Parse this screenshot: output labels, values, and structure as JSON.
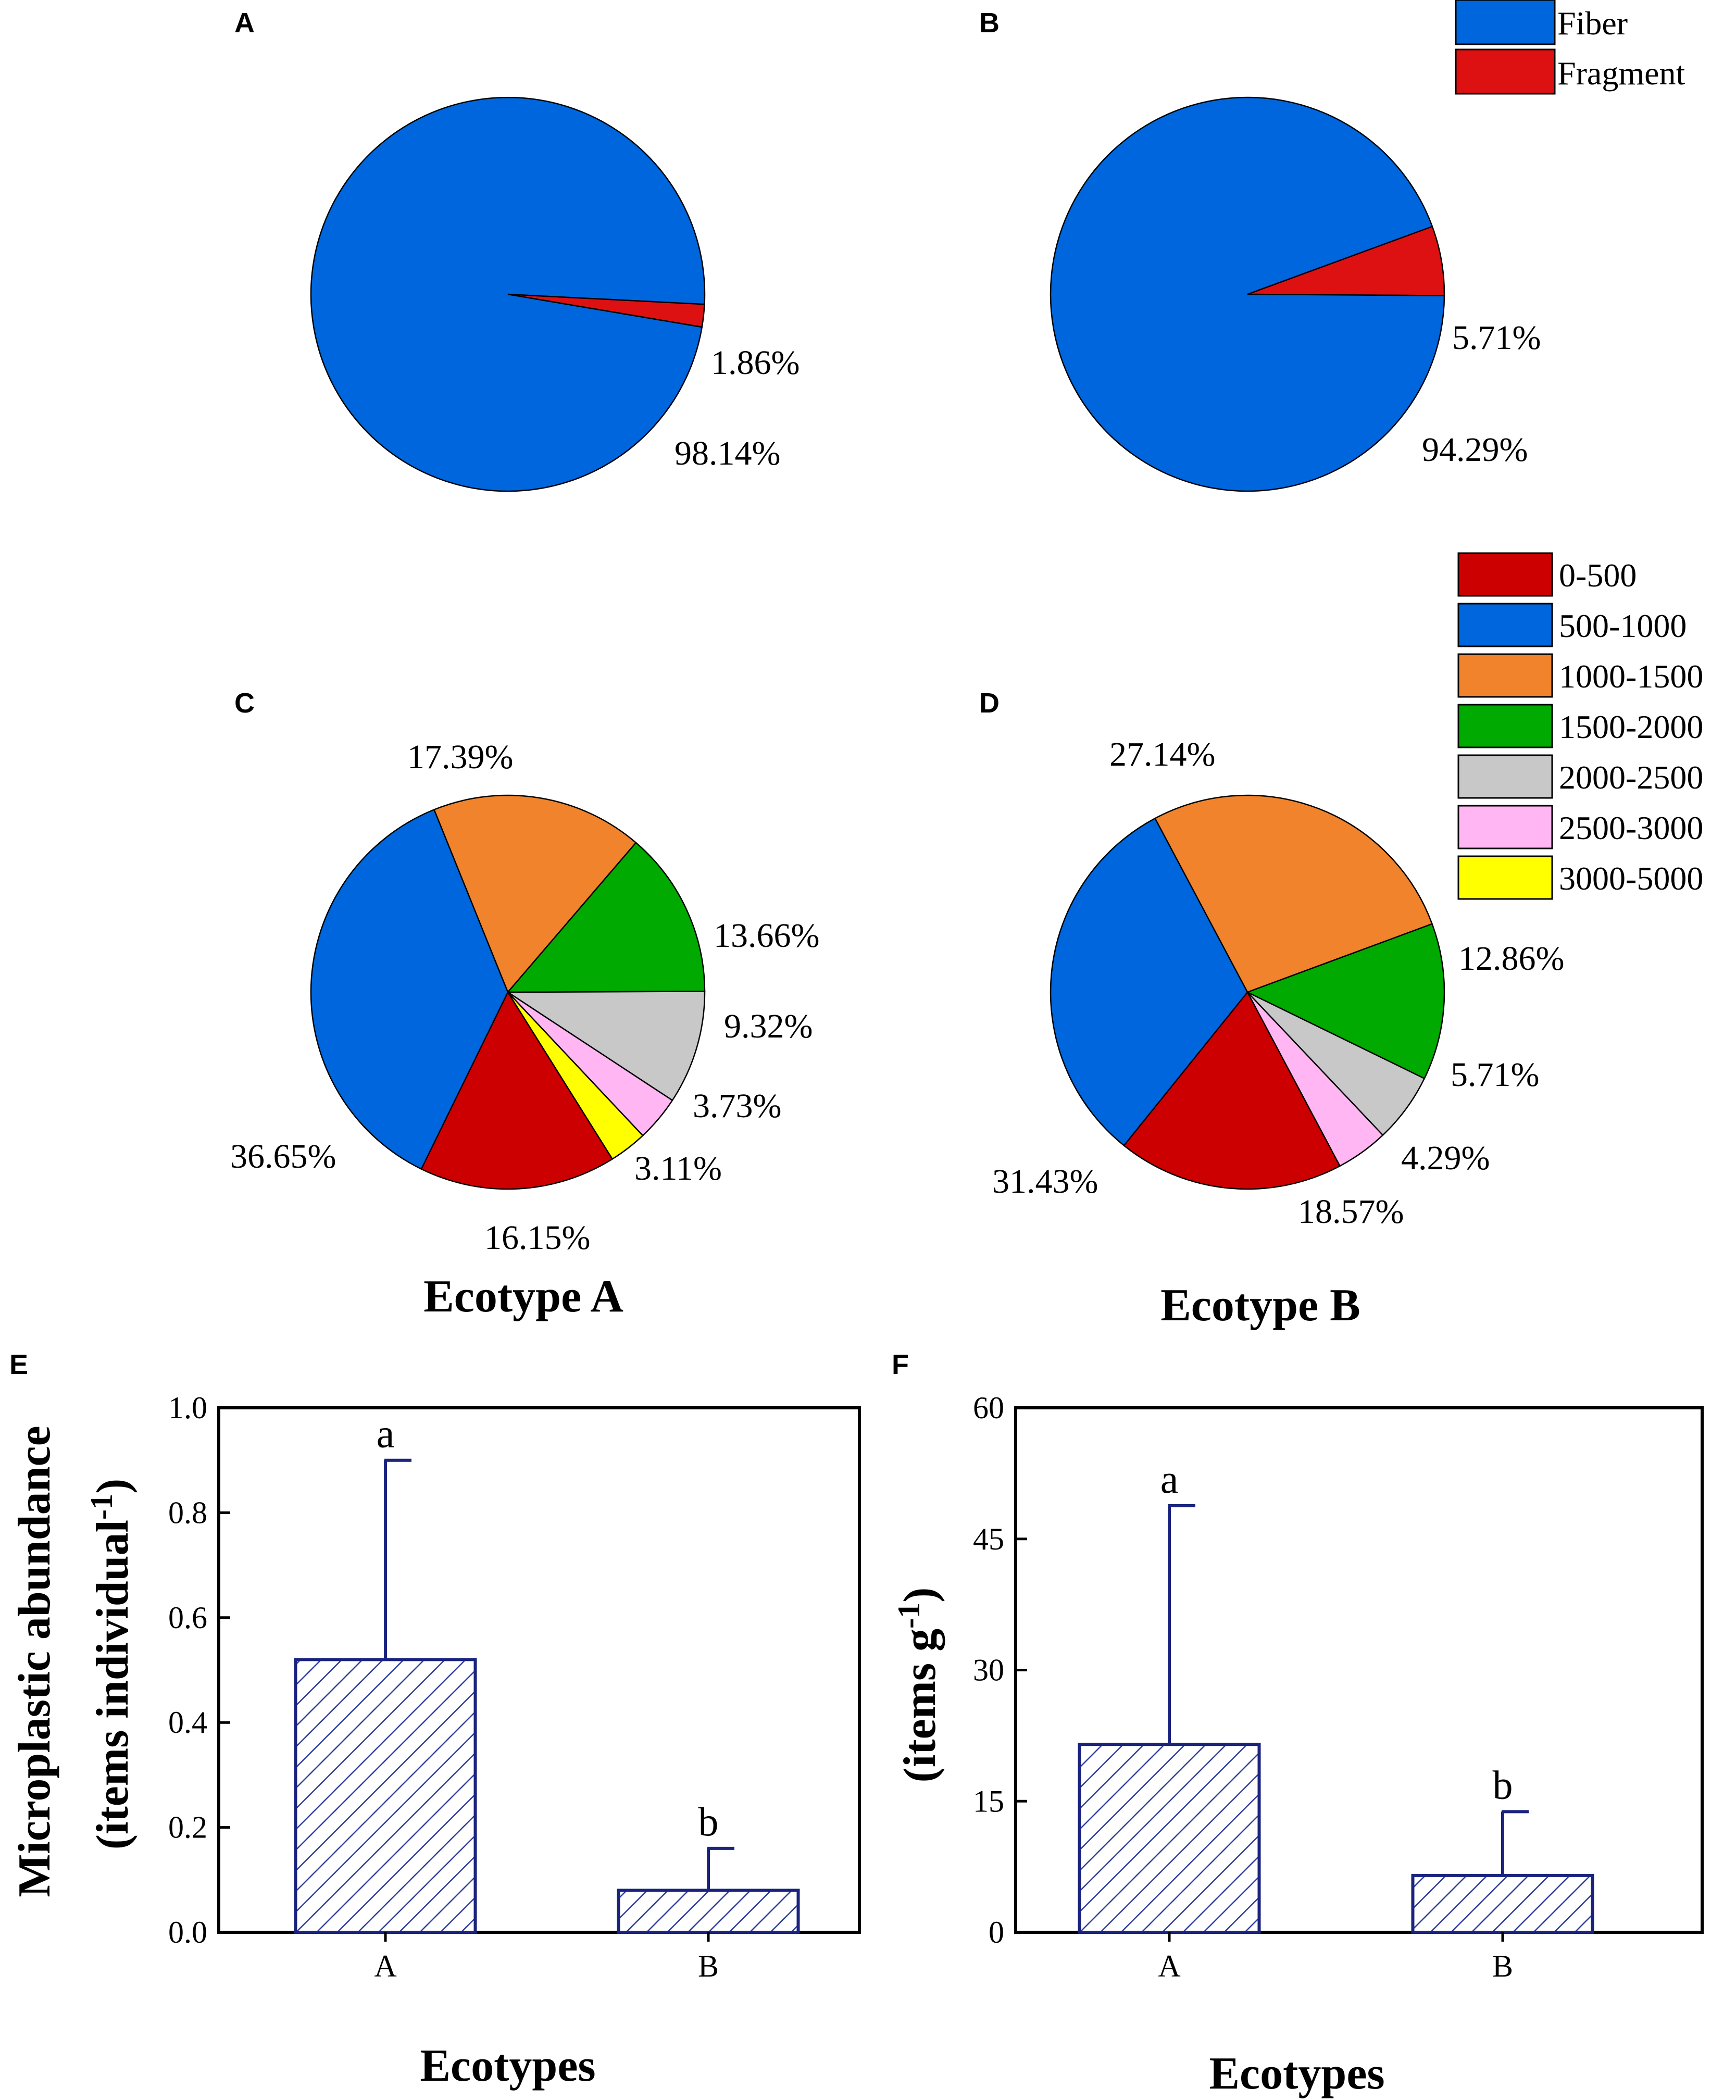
{
  "chart_data": [
    {
      "panel": "A",
      "type": "pie",
      "slices": [
        {
          "name": "Fiber",
          "value": 98.14,
          "label": "98.14%",
          "color": "#0066dd"
        },
        {
          "name": "Fragment",
          "value": 1.86,
          "label": "1.86%",
          "color": "#dd1111"
        }
      ]
    },
    {
      "panel": "B",
      "type": "pie",
      "slices": [
        {
          "name": "Fiber",
          "value": 94.29,
          "label": "94.29%",
          "color": "#0066dd"
        },
        {
          "name": "Fragment",
          "value": 5.71,
          "label": "5.71%",
          "color": "#dd1111"
        }
      ],
      "legend": [
        "Fiber",
        "Fragment"
      ]
    },
    {
      "panel": "C",
      "type": "pie",
      "title": "Ecotype A",
      "slices": [
        {
          "name": "1000-1500",
          "value": 17.39,
          "label": "17.39%",
          "color": "#f0832b"
        },
        {
          "name": "1500-2000",
          "value": 13.66,
          "label": "13.66%",
          "color": "#00aa00"
        },
        {
          "name": "2000-2500",
          "value": 9.32,
          "label": "9.32%",
          "color": "#c8c8c8"
        },
        {
          "name": "2500-3000",
          "value": 3.73,
          "label": "3.73%",
          "color": "#ffb6f2"
        },
        {
          "name": "3000-5000",
          "value": 3.11,
          "label": "3.11%",
          "color": "#ffff00"
        },
        {
          "name": "0-500",
          "value": 16.15,
          "label": "16.15%",
          "color": "#cc0000"
        },
        {
          "name": "500-1000",
          "value": 36.65,
          "label": "36.65%",
          "color": "#0066dd"
        }
      ]
    },
    {
      "panel": "D",
      "type": "pie",
      "title": "Ecotype B",
      "slices": [
        {
          "name": "1000-1500",
          "value": 27.14,
          "label": "27.14%",
          "color": "#f0832b"
        },
        {
          "name": "1500-2000",
          "value": 12.86,
          "label": "12.86%",
          "color": "#00aa00"
        },
        {
          "name": "2000-2500",
          "value": 5.71,
          "label": "5.71%",
          "color": "#c8c8c8"
        },
        {
          "name": "2500-3000",
          "value": 4.29,
          "label": "4.29%",
          "color": "#ffb6f2"
        },
        {
          "name": "0-500",
          "value": 18.57,
          "label": "18.57%",
          "color": "#cc0000"
        },
        {
          "name": "500-1000",
          "value": 31.43,
          "label": "31.43%",
          "color": "#0066dd"
        }
      ],
      "legend": [
        "0-500",
        "500-1000",
        "1000-1500",
        "1500-2000",
        "2000-2500",
        "2500-3000",
        "3000-5000"
      ]
    },
    {
      "panel": "E",
      "type": "bar",
      "categories": [
        "A",
        "B"
      ],
      "values": [
        0.52,
        0.08
      ],
      "errors_upper": [
        0.9,
        0.16
      ],
      "significance": [
        "a",
        "b"
      ],
      "ylim": [
        0.0,
        1.0
      ],
      "yticks": [
        "0.0",
        "0.2",
        "0.4",
        "0.6",
        "0.8",
        "1.0"
      ],
      "xlabel": "Ecotypes",
      "ylabel_line1": "Microplastic abundance",
      "ylabel_line2": "(items individual",
      "ylabel_sup": "-1",
      "ylabel_end": ")"
    },
    {
      "panel": "F",
      "type": "bar",
      "categories": [
        "A",
        "B"
      ],
      "values": [
        21.5,
        6.5
      ],
      "errors_upper": [
        48.8,
        13.8
      ],
      "significance": [
        "a",
        "b"
      ],
      "ylim": [
        0,
        60
      ],
      "yticks": [
        "0",
        "15",
        "30",
        "45",
        "60"
      ],
      "xlabel": "Ecotypes",
      "ylabel_line2": "(items g",
      "ylabel_sup": "-1",
      "ylabel_end": ")"
    }
  ],
  "colors": {
    "bar_stroke": "#1a237e",
    "bar_hatch": "#2b3a9c"
  }
}
